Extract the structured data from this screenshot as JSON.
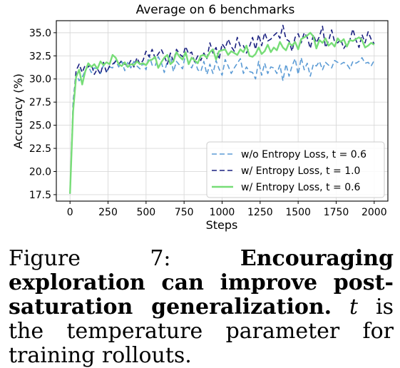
{
  "chart_data": {
    "type": "line",
    "title": "Average on 6 benchmarks",
    "xlabel": "Steps",
    "ylabel": "Accuracy (%)",
    "xlim": [
      -90,
      2090
    ],
    "ylim": [
      16.8,
      36.3
    ],
    "xticks": [
      0,
      250,
      500,
      750,
      1000,
      1250,
      1500,
      1750,
      2000
    ],
    "yticks": [
      "17.5",
      "20.0",
      "22.5",
      "25.0",
      "27.5",
      "30.0",
      "32.5",
      "35.0"
    ],
    "grid": true,
    "legend_position": "lower-right",
    "series": [
      {
        "name": "w/o Entropy Loss, t = 0.6",
        "color": "#5b9bd5",
        "dash": "7,4",
        "width": 1.6,
        "x": [
          0,
          20,
          40,
          60,
          80,
          100,
          120,
          140,
          160,
          180,
          200,
          220,
          240,
          260,
          280,
          300,
          320,
          340,
          360,
          380,
          400,
          420,
          440,
          460,
          480,
          500,
          520,
          540,
          560,
          580,
          600,
          620,
          640,
          660,
          680,
          700,
          720,
          740,
          760,
          780,
          800,
          820,
          840,
          860,
          880,
          900,
          920,
          940,
          960,
          980,
          1000,
          1020,
          1040,
          1060,
          1080,
          1100,
          1120,
          1140,
          1160,
          1180,
          1200,
          1220,
          1240,
          1260,
          1280,
          1300,
          1320,
          1340,
          1360,
          1380,
          1400,
          1420,
          1440,
          1460,
          1480,
          1500,
          1520,
          1540,
          1560,
          1580,
          1600,
          1620,
          1640,
          1660,
          1680,
          1700,
          1720,
          1740,
          1760,
          1780,
          1800,
          1820,
          1840,
          1860,
          1880,
          1900,
          1920,
          1940,
          1960,
          1980,
          2000
        ],
        "y": [
          17.6,
          27.5,
          30.6,
          29.8,
          30.2,
          30.9,
          31.4,
          30.7,
          31.2,
          31.1,
          30.6,
          31.5,
          30.8,
          31.3,
          31.2,
          32.0,
          31.3,
          31.9,
          30.9,
          31.8,
          31.2,
          31.9,
          31.4,
          31.1,
          31.7,
          31.0,
          32.6,
          31.5,
          31.4,
          32.4,
          31.8,
          30.7,
          31.9,
          32.5,
          30.8,
          31.9,
          31.5,
          31.1,
          32.7,
          31.6,
          31.2,
          32.0,
          31.0,
          30.8,
          31.9,
          30.5,
          31.6,
          30.6,
          32.0,
          31.1,
          30.4,
          32.1,
          31.4,
          30.6,
          31.2,
          31.7,
          32.2,
          30.6,
          31.3,
          30.8,
          30.7,
          30.0,
          31.9,
          30.4,
          31.7,
          30.6,
          31.3,
          31.2,
          30.6,
          31.5,
          29.8,
          31.6,
          30.3,
          31.4,
          32.2,
          30.5,
          32.3,
          31.0,
          31.7,
          30.3,
          31.6,
          31.4,
          31.9,
          31.0,
          31.8,
          31.5,
          31.2,
          32.0,
          31.8,
          31.6,
          31.8,
          31.6,
          31.1,
          31.9,
          31.7,
          31.9,
          32.3,
          31.7,
          31.8,
          31.4,
          32.0
        ]
      },
      {
        "name": "w/ Entropy Loss, t = 1.0",
        "color": "#1a2080",
        "dash": "7,4",
        "width": 1.6,
        "x": [
          0,
          20,
          40,
          60,
          80,
          100,
          120,
          140,
          160,
          180,
          200,
          220,
          240,
          260,
          280,
          300,
          320,
          340,
          360,
          380,
          400,
          420,
          440,
          460,
          480,
          500,
          520,
          540,
          560,
          580,
          600,
          620,
          640,
          660,
          680,
          700,
          720,
          740,
          760,
          780,
          800,
          820,
          840,
          860,
          880,
          900,
          920,
          940,
          960,
          980,
          1000,
          1020,
          1040,
          1060,
          1080,
          1100,
          1120,
          1140,
          1160,
          1180,
          1200,
          1220,
          1240,
          1260,
          1280,
          1300,
          1320,
          1340,
          1360,
          1380,
          1400,
          1420,
          1440,
          1460,
          1480,
          1500,
          1520,
          1540,
          1560,
          1580,
          1600,
          1620,
          1640,
          1660,
          1680,
          1700,
          1720,
          1740,
          1760,
          1780,
          1800,
          1820,
          1840,
          1860,
          1880,
          1900,
          1920,
          1940,
          1960,
          1980,
          2000
        ],
        "y": [
          17.6,
          27.0,
          30.9,
          31.6,
          30.7,
          31.5,
          31.3,
          31.6,
          30.5,
          31.1,
          30.5,
          31.8,
          30.7,
          31.4,
          31.6,
          31.9,
          31.6,
          32.0,
          31.6,
          31.4,
          32.0,
          31.3,
          32.3,
          31.6,
          32.0,
          33.0,
          32.4,
          33.2,
          32.2,
          32.7,
          33.2,
          32.5,
          31.6,
          32.8,
          31.9,
          33.2,
          32.7,
          32.4,
          33.5,
          32.7,
          32.9,
          31.8,
          32.5,
          32.0,
          32.8,
          32.2,
          33.9,
          32.8,
          33.4,
          32.1,
          33.8,
          33.3,
          34.3,
          33.5,
          33.0,
          34.5,
          33.5,
          33.6,
          32.8,
          33.5,
          34.5,
          33.2,
          34.8,
          33.6,
          35.0,
          34.1,
          34.3,
          34.7,
          35.0,
          34.4,
          35.8,
          34.3,
          34.1,
          33.0,
          34.5,
          34.9,
          33.9,
          35.0,
          34.5,
          33.3,
          34.8,
          33.9,
          34.6,
          35.7,
          33.4,
          34.1,
          35.3,
          34.0,
          33.9,
          34.3,
          33.3,
          33.8,
          34.2,
          35.4,
          34.2,
          33.4,
          34.8,
          33.9,
          35.1,
          34.3,
          33.8
        ]
      },
      {
        "name": "w/ Entropy Loss, t = 0.6",
        "color": "#77dd77",
        "dash": "",
        "width": 2.4,
        "x": [
          0,
          20,
          40,
          60,
          80,
          100,
          120,
          140,
          160,
          180,
          200,
          220,
          240,
          260,
          280,
          300,
          320,
          340,
          360,
          380,
          400,
          420,
          440,
          460,
          480,
          500,
          520,
          540,
          560,
          580,
          600,
          620,
          640,
          660,
          680,
          700,
          720,
          740,
          760,
          780,
          800,
          820,
          840,
          860,
          880,
          900,
          920,
          940,
          960,
          980,
          1000,
          1020,
          1040,
          1060,
          1080,
          1100,
          1120,
          1140,
          1160,
          1180,
          1200,
          1220,
          1240,
          1260,
          1280,
          1300,
          1320,
          1340,
          1360,
          1380,
          1400,
          1420,
          1440,
          1460,
          1480,
          1500,
          1520,
          1540,
          1560,
          1580,
          1600,
          1620,
          1640,
          1660,
          1680,
          1700,
          1720,
          1740,
          1760,
          1780,
          1800,
          1820,
          1840,
          1860,
          1880,
          1900,
          1920,
          1940,
          1960,
          1980,
          2000
        ],
        "y": [
          17.6,
          26.5,
          30.2,
          31.0,
          29.4,
          30.8,
          31.7,
          31.3,
          31.6,
          31.1,
          31.9,
          31.5,
          31.8,
          31.6,
          32.6,
          32.3,
          31.6,
          31.4,
          31.8,
          31.3,
          31.6,
          31.5,
          31.9,
          31.6,
          31.7,
          31.5,
          32.0,
          32.1,
          32.4,
          31.2,
          31.8,
          32.3,
          32.6,
          31.6,
          31.9,
          32.9,
          32.4,
          32.1,
          32.9,
          31.6,
          32.3,
          32.0,
          31.7,
          32.5,
          32.6,
          32.3,
          32.9,
          33.2,
          32.1,
          33.0,
          33.1,
          33.2,
          32.6,
          33.0,
          32.8,
          32.6,
          33.2,
          32.9,
          33.6,
          32.5,
          32.4,
          32.7,
          33.4,
          32.7,
          33.0,
          33.7,
          32.9,
          33.4,
          33.1,
          34.0,
          33.4,
          33.1,
          33.9,
          33.6,
          34.0,
          33.2,
          34.3,
          34.5,
          34.7,
          35.0,
          34.6,
          33.3,
          34.2,
          33.9,
          34.4,
          33.6,
          33.9,
          33.5,
          34.4,
          34.0,
          34.3,
          33.5,
          34.2,
          34.1,
          34.3,
          34.5,
          34.2,
          33.4,
          33.6,
          33.9,
          33.7
        ]
      }
    ]
  },
  "caption": {
    "fig_label": "Figure 7:",
    "bold_text": "Encouraging exploration can improve post-saturation generalization.",
    "var": "t",
    "rest_text": "is the temperature parameter for training rollouts."
  }
}
